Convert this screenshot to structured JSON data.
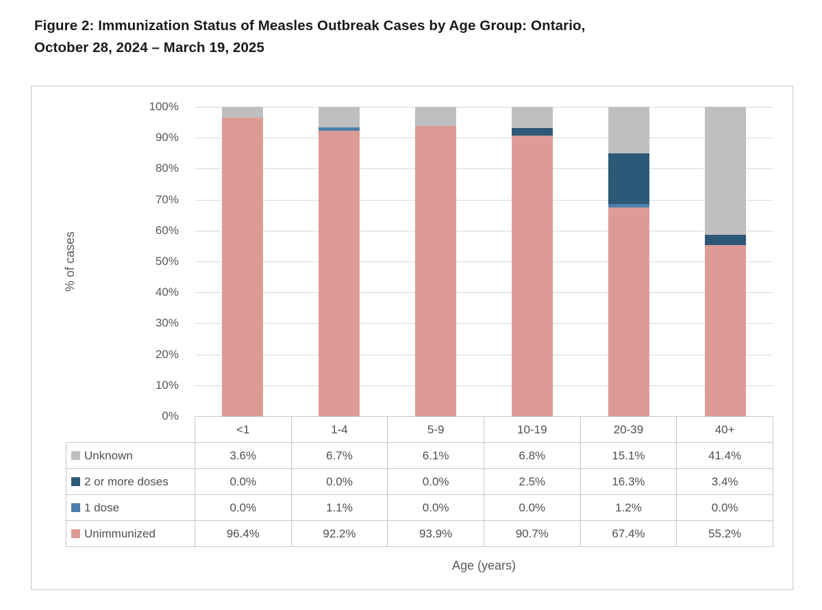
{
  "figure": {
    "title_line1": "Figure 2: Immunization Status of Measles Outbreak Cases by Age Group: Ontario,",
    "title_line2": "October 28, 2024 – March 19, 2025"
  },
  "chart_data": {
    "type": "bar",
    "stacked": true,
    "title": "Figure 2: Immunization Status of Measles Outbreak Cases by Age Group: Ontario, October 28, 2024 – March 19, 2025",
    "xlabel": "Age (years)",
    "ylabel": "% of cases",
    "ylim": [
      0,
      100
    ],
    "y_ticks": [
      "100%",
      "90%",
      "80%",
      "70%",
      "60%",
      "50%",
      "40%",
      "30%",
      "20%",
      "10%",
      "0%"
    ],
    "grid": "horizontal",
    "legend_position": "table-rows-left",
    "categories": [
      "<1",
      "1-4",
      "5-9",
      "10-19",
      "20-39",
      "40+"
    ],
    "series": [
      {
        "name": "Unknown",
        "color": "#BFBFBF",
        "values": [
          3.6,
          6.7,
          6.1,
          6.8,
          15.1,
          41.4
        ]
      },
      {
        "name": "2 or more doses",
        "color": "#2D5978",
        "values": [
          0.0,
          0.0,
          0.0,
          2.5,
          16.3,
          3.4
        ]
      },
      {
        "name": "1 dose",
        "color": "#4D80AB",
        "values": [
          0.0,
          1.1,
          0.0,
          0.0,
          1.2,
          0.0
        ]
      },
      {
        "name": "Unimmunized",
        "color": "#DD9B95",
        "values": [
          96.4,
          92.2,
          93.9,
          90.7,
          67.4,
          55.2
        ]
      }
    ],
    "stack_order_top_to_bottom": [
      "Unknown",
      "2 or more doses",
      "1 dose",
      "Unimmunized"
    ],
    "value_format": "one-decimal-percent",
    "colors": {
      "gridline": "#D9D9D9",
      "table_border": "#C6C6C6",
      "panel_border": "#C8C8C8",
      "axis_text": "#595959"
    }
  }
}
